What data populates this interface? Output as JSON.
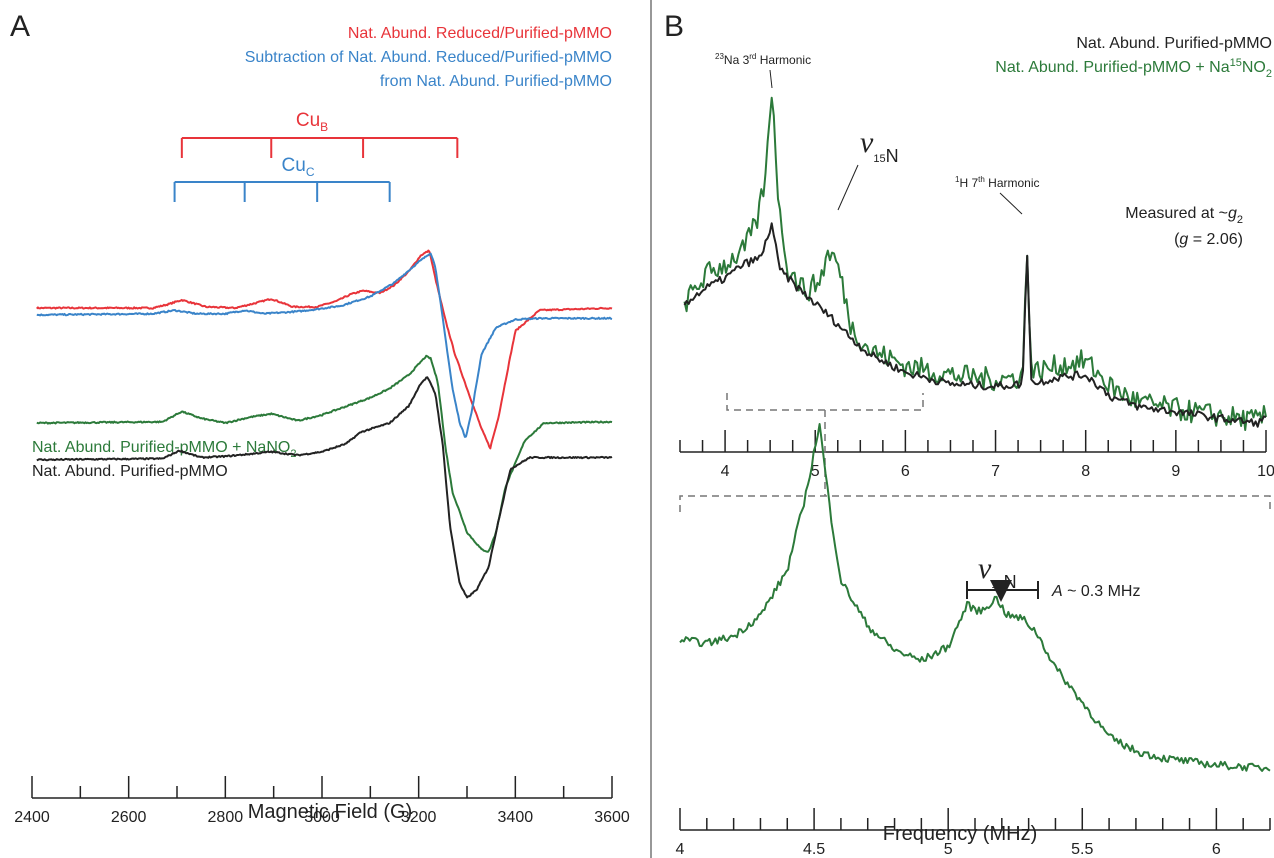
{
  "panels": {
    "a": {
      "letter": "A"
    },
    "b": {
      "letter": "B"
    }
  },
  "colors": {
    "red": "#e8343a",
    "blue": "#3a84c9",
    "green": "#2c7a3a",
    "black": "#222222",
    "gray": "#777777"
  },
  "chart_data": [
    {
      "type": "line",
      "panel": "A",
      "xlabel": "Magnetic Field (G)",
      "xlim": [
        2400,
        3600
      ],
      "xticks": [
        2400,
        2600,
        2800,
        3000,
        3200,
        3400,
        3600
      ],
      "legend_top": [
        {
          "text": "Nat. Abund. Reduced/Purified-pMMO",
          "color": "#e8343a"
        },
        {
          "text": "Subtraction of Nat. Abund. Reduced/Purified-pMMO",
          "color": "#3a84c9"
        },
        {
          "text": "from Nat. Abund. Purified-pMMO",
          "color": "#3a84c9"
        }
      ],
      "legend_bottom": [
        {
          "text": "Nat. Abund. Purified-pMMO + NaNO",
          "sub": "2",
          "color": "#2c7a3a"
        },
        {
          "text": "Nat. Abund. Purified-pMMO",
          "color": "#222222"
        }
      ],
      "annotations": {
        "cuB": {
          "label": "Cu",
          "sub": "B",
          "color": "#e8343a",
          "positions": [
            2710,
            2895,
            3085,
            3280
          ]
        },
        "cuC": {
          "label": "Cu",
          "sub": "C",
          "color": "#3a84c9",
          "positions": [
            2695,
            2840,
            2990,
            3140
          ]
        }
      },
      "series": [
        {
          "color": "#e8343a",
          "x": [
            2410,
            2650,
            2680,
            2710,
            2760,
            2820,
            2860,
            2895,
            2940,
            2990,
            3030,
            3060,
            3085,
            3120,
            3150,
            3180,
            3205,
            3222,
            3235,
            3255,
            3275,
            3300,
            3330,
            3348,
            3365,
            3400,
            3450,
            3600
          ],
          "y": [
            0.8,
            0.8,
            0.83,
            0.87,
            0.81,
            0.8,
            0.84,
            0.88,
            0.81,
            0.81,
            0.86,
            0.92,
            0.95,
            0.93,
            1.0,
            1.12,
            1.26,
            1.3,
            1.05,
            0.7,
            0.4,
            0.1,
            -0.25,
            -0.42,
            -0.15,
            0.6,
            0.78,
            0.8
          ]
        },
        {
          "color": "#3a84c9",
          "x": [
            2410,
            2650,
            2695,
            2740,
            2800,
            2840,
            2880,
            2950,
            2990,
            3040,
            3100,
            3150,
            3200,
            3225,
            3235,
            3250,
            3270,
            3285,
            3297,
            3310,
            3330,
            3360,
            3400,
            3450,
            3600
          ],
          "y": [
            0.74,
            0.75,
            0.78,
            0.75,
            0.75,
            0.78,
            0.75,
            0.77,
            0.79,
            0.82,
            0.9,
            1.02,
            1.2,
            1.28,
            1.15,
            0.7,
            0.1,
            -0.2,
            -0.33,
            -0.1,
            0.4,
            0.63,
            0.7,
            0.71,
            0.71
          ]
        },
        {
          "color": "#2c7a3a",
          "x": [
            2410,
            2670,
            2710,
            2750,
            2800,
            2850,
            2895,
            2950,
            3000,
            3060,
            3100,
            3140,
            3180,
            3215,
            3225,
            3240,
            3255,
            3270,
            3300,
            3330,
            3345,
            3360,
            3380,
            3420,
            3460,
            3600
          ],
          "y": [
            -0.2,
            -0.19,
            -0.1,
            -0.16,
            -0.2,
            -0.15,
            -0.12,
            -0.18,
            -0.13,
            -0.04,
            0.02,
            0.1,
            0.22,
            0.38,
            0.36,
            0.15,
            -0.4,
            -0.8,
            -1.15,
            -1.3,
            -1.32,
            -1.15,
            -0.75,
            -0.35,
            -0.2,
            -0.19
          ]
        },
        {
          "color": "#222222",
          "x": [
            2410,
            2670,
            2705,
            2750,
            2800,
            2850,
            2895,
            2950,
            3000,
            3050,
            3080,
            3140,
            3180,
            3205,
            3218,
            3235,
            3250,
            3265,
            3285,
            3300,
            3320,
            3345,
            3365,
            3390,
            3430,
            3480,
            3600
          ],
          "y": [
            -0.52,
            -0.51,
            -0.44,
            -0.5,
            -0.49,
            -0.47,
            -0.45,
            -0.48,
            -0.45,
            -0.38,
            -0.28,
            -0.2,
            -0.05,
            0.15,
            0.2,
            0.05,
            -0.4,
            -1.1,
            -1.6,
            -1.72,
            -1.65,
            -1.45,
            -1.05,
            -0.6,
            -0.5,
            -0.5,
            -0.5
          ]
        }
      ]
    },
    {
      "type": "line",
      "panel": "B-top",
      "xlim": [
        3.5,
        10
      ],
      "xticks": [
        4,
        5,
        6,
        7,
        8,
        9,
        10
      ],
      "legend": [
        {
          "text": "Nat. Abund. Purified-pMMO",
          "color": "#222222"
        },
        {
          "text": "Nat. Abund. Purified-pMMO + Na",
          "sup": "15",
          "tail": "NO",
          "sub": "2",
          "color": "#2c7a3a"
        }
      ],
      "annotations": {
        "na": {
          "sup": "23",
          "text": "Na 3",
          "sup2": "rd",
          "tail": " Harmonic",
          "x": 4.55
        },
        "nu": {
          "symbol": "ν",
          "sub": "15",
          "subtail": "N",
          "x": 5.2
        },
        "h": {
          "sup": "1",
          "text": "H 7",
          "sup2": "th",
          "tail": " Harmonic",
          "x": 7.35
        },
        "measured": {
          "line1_pre": "Measured at ~",
          "line1_it": "g",
          "line1_sub": "2",
          "line2_pre": "(",
          "line2_it": "g",
          "line2_post": " = 2.06)"
        }
      },
      "series": [
        {
          "color": "#2c7a3a",
          "x": [
            3.55,
            3.8,
            4.0,
            4.2,
            4.35,
            4.45,
            4.52,
            4.6,
            4.7,
            4.9,
            5.05,
            5.15,
            5.25,
            5.4,
            5.6,
            6.0,
            6.5,
            7.0,
            7.3,
            7.35,
            7.4,
            7.7,
            8.0,
            8.3,
            8.6,
            9.0,
            9.5,
            9.9,
            10.0
          ],
          "y": [
            0.55,
            0.68,
            0.72,
            0.78,
            0.9,
            1.1,
            1.5,
            0.95,
            0.7,
            0.6,
            0.65,
            0.78,
            0.72,
            0.45,
            0.35,
            0.28,
            0.24,
            0.22,
            0.23,
            0.78,
            0.25,
            0.28,
            0.3,
            0.18,
            0.12,
            0.09,
            0.06,
            0.04,
            0.06
          ]
        },
        {
          "color": "#222222",
          "x": [
            3.55,
            3.8,
            4.0,
            4.2,
            4.4,
            4.52,
            4.6,
            4.8,
            5.0,
            5.2,
            5.4,
            5.6,
            6.0,
            6.5,
            7.0,
            7.3,
            7.35,
            7.4,
            7.7,
            8.0,
            8.3,
            8.6,
            9.0,
            9.5,
            9.9,
            10.0
          ],
          "y": [
            0.55,
            0.62,
            0.66,
            0.72,
            0.75,
            0.9,
            0.7,
            0.62,
            0.55,
            0.48,
            0.4,
            0.33,
            0.25,
            0.2,
            0.19,
            0.2,
            0.78,
            0.2,
            0.23,
            0.24,
            0.14,
            0.1,
            0.08,
            0.05,
            0.03,
            0.05
          ]
        }
      ]
    },
    {
      "type": "line",
      "panel": "B-bottom",
      "xlabel": "Frequency (MHz)",
      "xlim": [
        4,
        6.2
      ],
      "xticks": [
        4,
        4.5,
        5,
        5.5,
        6
      ],
      "annotations": {
        "nu": {
          "symbol": "ν",
          "sub": "15",
          "subtail": "N",
          "x": 5.2
        },
        "coupling": {
          "it": "A",
          "text": " ~ 0.3 MHz",
          "range": [
            5.07,
            5.33
          ]
        }
      },
      "series": [
        {
          "color": "#2c7a3a",
          "x": [
            4.0,
            4.1,
            4.2,
            4.3,
            4.4,
            4.47,
            4.52,
            4.56,
            4.6,
            4.7,
            4.8,
            4.9,
            5.0,
            5.07,
            5.12,
            5.18,
            5.22,
            5.28,
            5.33,
            5.4,
            5.5,
            5.6,
            5.7,
            5.8,
            5.9,
            6.0,
            6.1,
            6.2
          ],
          "y": [
            0.38,
            0.37,
            0.39,
            0.45,
            0.58,
            0.8,
            1.0,
            0.75,
            0.55,
            0.42,
            0.35,
            0.32,
            0.36,
            0.48,
            0.46,
            0.5,
            0.45,
            0.44,
            0.4,
            0.3,
            0.2,
            0.1,
            0.06,
            0.04,
            0.03,
            0.02,
            0.015,
            0.01
          ]
        }
      ]
    }
  ]
}
